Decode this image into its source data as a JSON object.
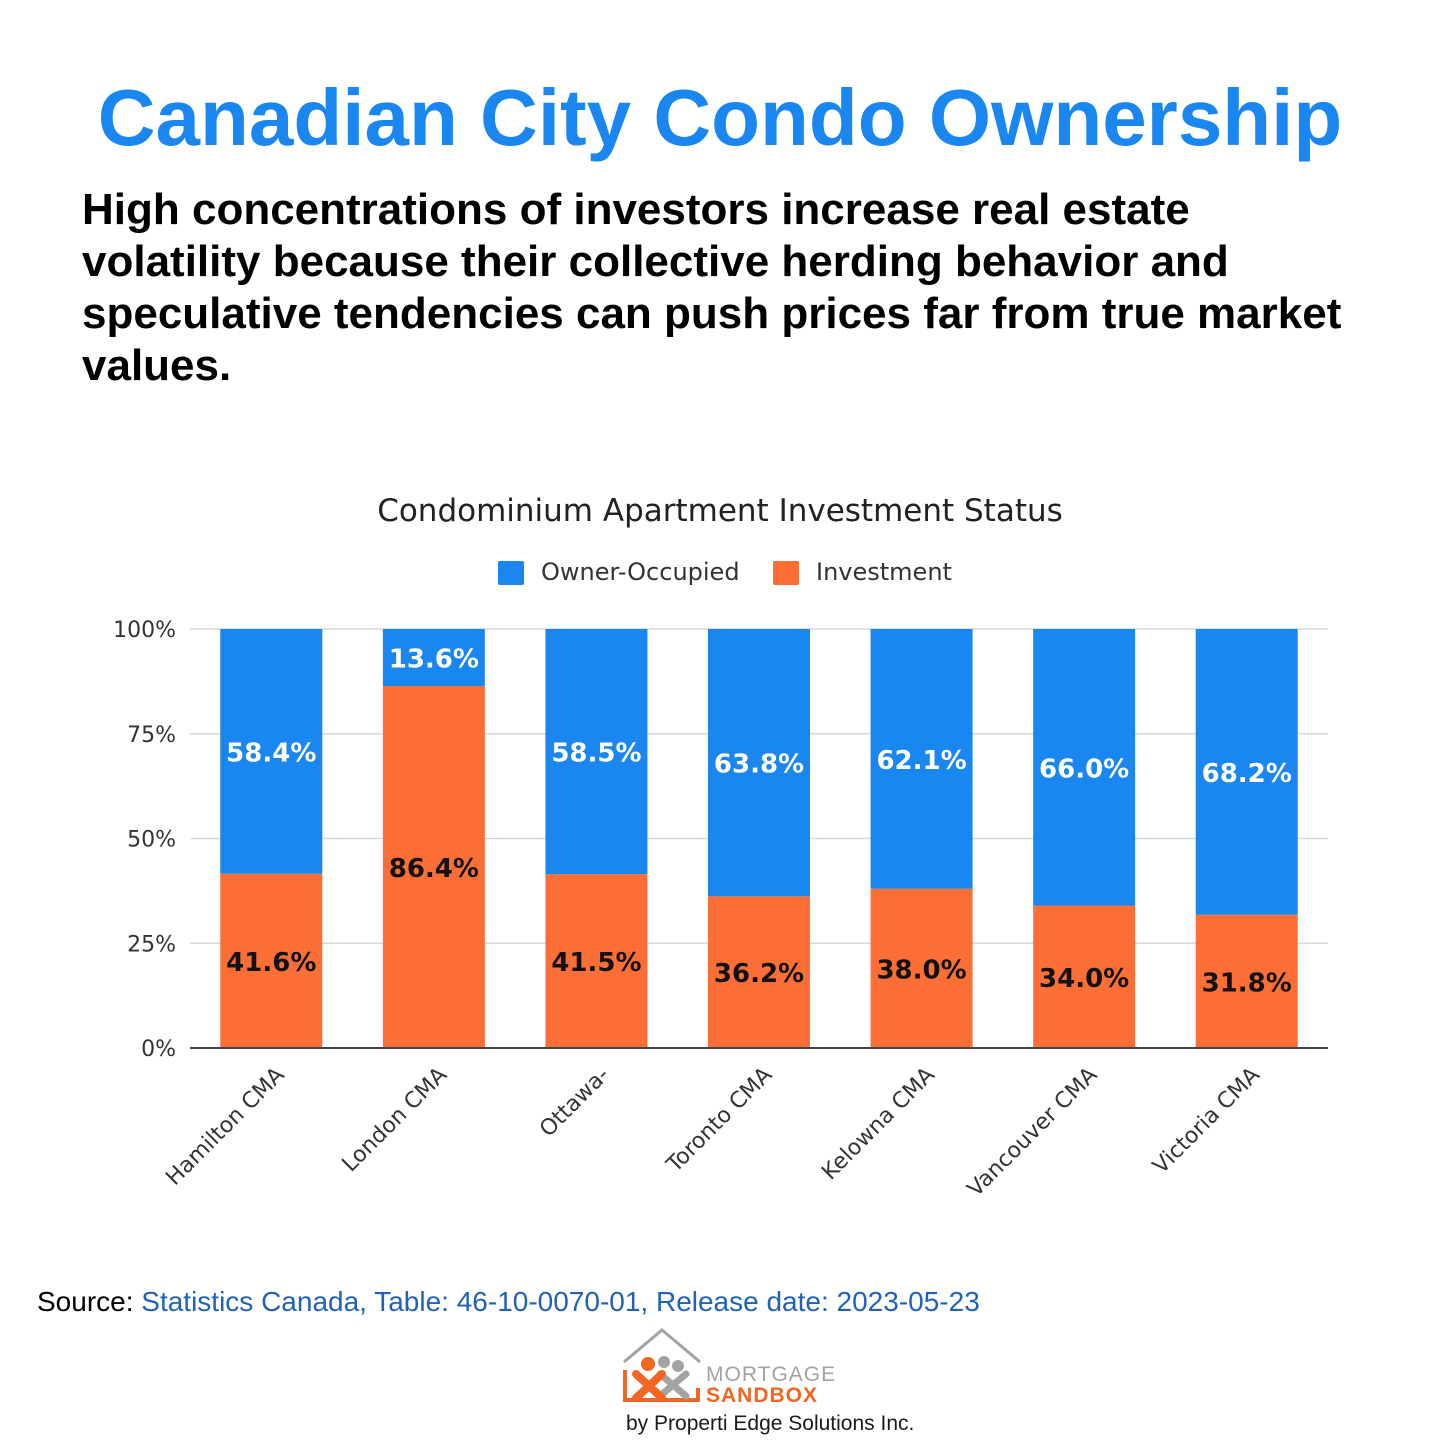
{
  "page": {
    "headline": "Canadian City Condo Ownership",
    "subhead": "High concentrations of investors increase real estate volatility because their collective herding behavior and speculative tendencies can push prices far from true market values.",
    "source_prefix": "Source:",
    "source_text": "Statistics Canada, Table: 46-10-0070-01, Release date: 2023-05-23",
    "logo_word1": "MORTGAGE",
    "logo_word2": "SANDBOX",
    "logo_byline": "by Properti Edge Solutions Inc."
  },
  "colors": {
    "headline": "#1a86f0",
    "owner": "#1a86f0",
    "investment": "#fb6e36",
    "source_link": "#2062b8",
    "logo_gray": "#a3a3a3",
    "logo_orange": "#f26522",
    "grid": "#d9d9d9",
    "axis": "#444444"
  },
  "chart_data": {
    "type": "bar",
    "stacked": true,
    "title": "Condominium Apartment Investment Status",
    "categories": [
      "Hamilton CMA",
      "London CMA",
      "Ottawa-",
      "Toronto CMA",
      "Kelowna CMA",
      "Vancouver CMA",
      "Victoria CMA"
    ],
    "series": [
      {
        "name": "Investment",
        "values": [
          41.6,
          86.4,
          41.5,
          36.2,
          38.0,
          34.0,
          31.8
        ],
        "labels": [
          "41.6%",
          "86.4%",
          "41.5%",
          "36.2%",
          "38.0%",
          "34.0%",
          "31.8%"
        ]
      },
      {
        "name": "Owner-Occupied",
        "values": [
          58.4,
          13.6,
          58.5,
          63.8,
          62.1,
          66.0,
          68.2
        ],
        "labels": [
          "58.4%",
          "13.6%",
          "58.5%",
          "63.8%",
          "62.1%",
          "66.0%",
          "68.2%"
        ]
      }
    ],
    "legend": [
      "Owner-Occupied",
      "Investment"
    ],
    "legend_position": "top-center",
    "ylim": [
      0,
      100
    ],
    "yticks": [
      0,
      25,
      50,
      75,
      100
    ],
    "ytick_labels": [
      "0%",
      "25%",
      "50%",
      "75%",
      "100%"
    ],
    "grid": true,
    "xlabel": "",
    "ylabel": ""
  }
}
